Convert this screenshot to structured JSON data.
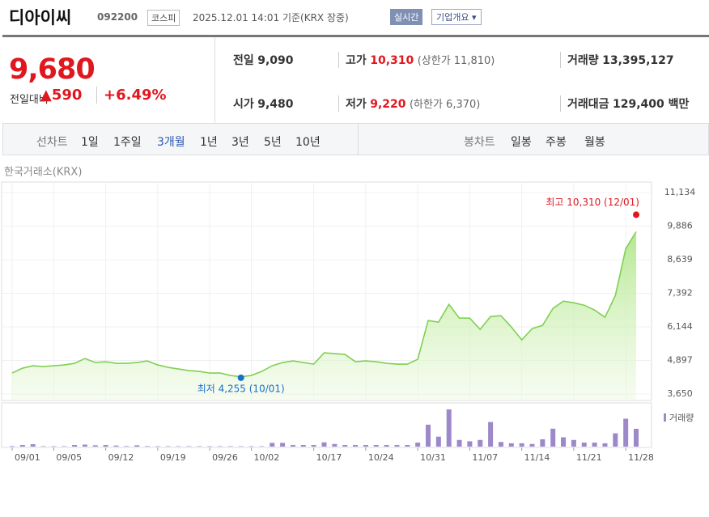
{
  "header": {
    "name": "디아이씨",
    "code": "092200",
    "market": "코스피",
    "datetime": "2025.12.01 14:01",
    "basis": "기준(KRX 장중)",
    "realtime": "실시간",
    "overview": "기업개요"
  },
  "quote": {
    "price": "9,680",
    "change_label": "전일대비",
    "change": "590",
    "change_rate": "+6.49%"
  },
  "stats": {
    "rows": [
      [
        [
          "전일",
          "9,090",
          ""
        ],
        [
          "고가",
          "10,310",
          "(상한가 11,810)"
        ],
        [
          "거래량",
          "13,395,127",
          ""
        ]
      ],
      [
        [
          "시가",
          "9,480",
          ""
        ],
        [
          "저가",
          "9,220",
          "(하한가 6,370)"
        ],
        [
          "거래대금",
          "129,400 백만",
          ""
        ]
      ]
    ]
  },
  "tabs": {
    "line_label": "선차트",
    "line_periods": [
      "1일",
      "1주일",
      "3개월",
      "1년",
      "3년",
      "5년",
      "10년"
    ],
    "active": "3개월",
    "candle_label": "봉차트",
    "candle_periods": [
      "일봉",
      "주봉",
      "월봉"
    ]
  },
  "chart_data": {
    "type": "line",
    "source": "한국거래소(KRX)",
    "categories": [
      "09/01",
      null,
      null,
      null,
      "09/05",
      null,
      null,
      null,
      null,
      "09/12",
      null,
      null,
      null,
      null,
      "09/19",
      null,
      null,
      null,
      null,
      "09/26",
      null,
      null,
      null,
      "10/02",
      null,
      null,
      null,
      null,
      null,
      "10/17",
      null,
      null,
      null,
      null,
      "10/24",
      null,
      null,
      null,
      null,
      "10/31",
      null,
      null,
      null,
      null,
      "11/07",
      null,
      null,
      null,
      null,
      "11/14",
      null,
      null,
      null,
      null,
      "11/21",
      null,
      null,
      null,
      null,
      "11/28",
      null
    ],
    "series": [
      {
        "color": "#7fd152",
        "values": [
          4430,
          4610,
          4700,
          4670,
          4700,
          4730,
          4790,
          4970,
          4820,
          4850,
          4790,
          4790,
          4820,
          4880,
          4730,
          4640,
          4580,
          4520,
          4490,
          4430,
          4430,
          4340,
          4290,
          4340,
          4490,
          4700,
          4820,
          4880,
          4820,
          4760,
          5180,
          5150,
          5120,
          4850,
          4880,
          4850,
          4790,
          4760,
          4760,
          4940,
          6380,
          6320,
          6980,
          6470,
          6470,
          6050,
          6530,
          6560,
          6140,
          5660,
          6080,
          6200,
          6830,
          7100,
          7040,
          6950,
          6770,
          6500,
          7310,
          9050,
          9680
        ]
      },
      {
        "name": "거래량",
        "type": "bar",
        "color": "#9d88c9",
        "values": [
          400000,
          1200000,
          1800000,
          300000,
          300000,
          300000,
          1200000,
          1500000,
          1000000,
          1200000,
          800000,
          400000,
          1000000,
          400000,
          300000,
          300000,
          300000,
          300000,
          300000,
          300000,
          300000,
          300000,
          300000,
          300000,
          300000,
          2800000,
          2800000,
          1200000,
          1200000,
          1200000,
          3200000,
          2000000,
          1200000,
          1200000,
          1200000,
          1200000,
          1200000,
          1200000,
          1200000,
          3000000,
          16500000,
          7500000,
          28000000,
          5000000,
          4000000,
          5000000,
          18500000,
          3500000,
          2500000,
          2500000,
          2000000,
          5500000,
          13500000,
          7000000,
          5000000,
          3000000,
          3000000,
          2500000,
          10000000,
          21000000,
          13395127
        ]
      }
    ],
    "ylim": [
      3650,
      11134
    ],
    "yticks": [
      {
        "value": 11134,
        "label": "11,134"
      },
      {
        "value": 9886,
        "label": "9,886"
      },
      {
        "value": 8639,
        "label": "8,639"
      },
      {
        "value": 7392,
        "label": "7,392"
      },
      {
        "value": 6144,
        "label": "6,144"
      },
      {
        "value": 4897,
        "label": "4,897"
      },
      {
        "value": 3650,
        "label": "3,650"
      }
    ],
    "grid": true,
    "annotations": [
      {
        "text": "최고 10,310 (12/01)",
        "value": 10310,
        "color": "#e0171f"
      },
      {
        "text": "최저 4,255 (10/01)",
        "value": 4255,
        "color": "#1a6fc9"
      }
    ]
  }
}
